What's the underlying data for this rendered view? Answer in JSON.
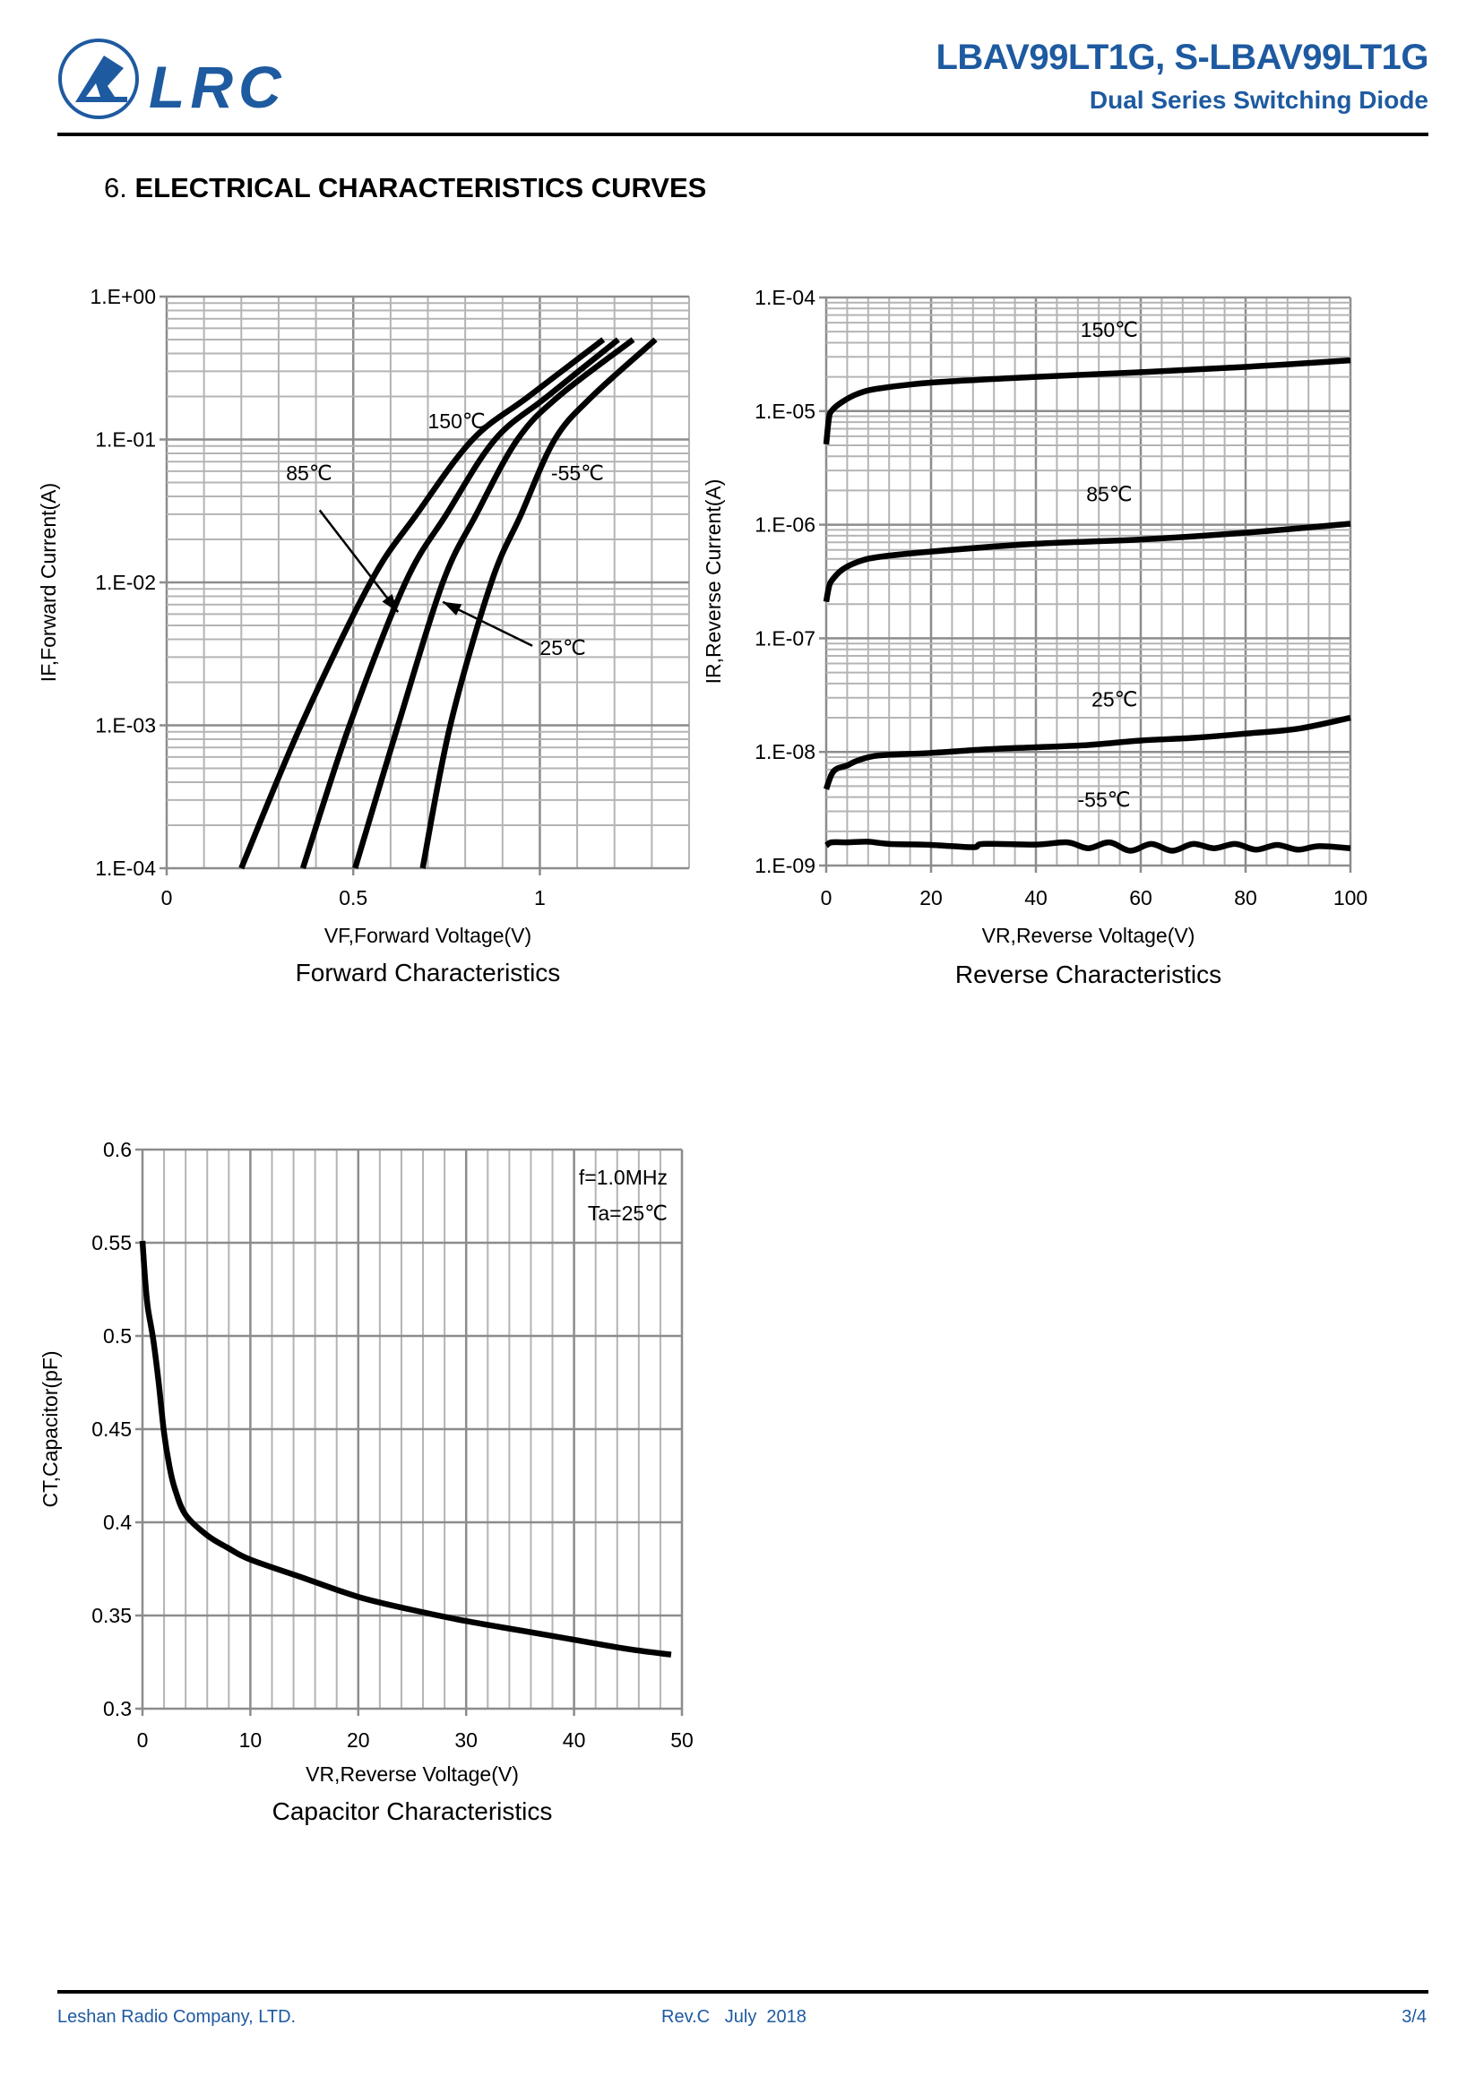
{
  "header": {
    "logo_text": "LRC",
    "title": "LBAV99LT1G, S-LBAV99LT1G",
    "subtitle": "Dual Series Switching Diode",
    "brand_color": "#1e5aa0"
  },
  "section": {
    "number": "6.",
    "title": "ELECTRICAL CHARACTERISTICS CURVES"
  },
  "footer": {
    "company": "Leshan Radio Company, LTD.",
    "revision": "Rev.C   July  2018",
    "page": "3/4"
  },
  "chart_data": [
    {
      "type": "line",
      "title": "Forward Characteristics",
      "xlabel": "VF,Forward Voltage(V)",
      "ylabel": "IF,Forward Current(A)",
      "xscale": "linear",
      "yscale": "log",
      "xlim": [
        0,
        1.4
      ],
      "ylim": [
        0.0001,
        1
      ],
      "xticks": [
        {
          "v": 0,
          "label": "0"
        },
        {
          "v": 0.5,
          "label": "0.5"
        },
        {
          "v": 1,
          "label": "1"
        }
      ],
      "yticks": [
        {
          "v": 1,
          "label": "1.E+00"
        },
        {
          "v": 0.1,
          "label": "1.E-01"
        },
        {
          "v": 0.01,
          "label": "1.E-02"
        },
        {
          "v": 0.001,
          "label": "1.E-03"
        },
        {
          "v": 0.0001,
          "label": "1.E-04"
        }
      ],
      "grid": true,
      "series": [
        {
          "name": "150℃",
          "x": [
            0.2,
            0.36,
            0.546,
            0.67,
            0.82,
            0.97,
            1.17
          ],
          "y": [
            0.0001,
            0.001,
            0.01,
            0.03,
            0.1,
            0.2,
            0.5
          ]
        },
        {
          "name": "85℃",
          "x": [
            0.365,
            0.49,
            0.64,
            0.75,
            0.88,
            1.02,
            1.21
          ],
          "y": [
            0.0001,
            0.001,
            0.01,
            0.03,
            0.1,
            0.2,
            0.5
          ]
        },
        {
          "name": "25℃",
          "x": [
            0.505,
            0.62,
            0.74,
            0.83,
            0.94,
            1.05,
            1.25
          ],
          "y": [
            0.0001,
            0.001,
            0.01,
            0.03,
            0.1,
            0.2,
            0.5
          ]
        },
        {
          "name": "-55℃",
          "x": [
            0.686,
            0.76,
            0.87,
            0.95,
            1.04,
            1.14,
            1.31
          ],
          "y": [
            0.0001,
            0.001,
            0.01,
            0.03,
            0.1,
            0.2,
            0.5
          ]
        }
      ],
      "annotations": [
        {
          "text": "150℃",
          "x": 0.7,
          "y": 0.12
        },
        {
          "text": "85℃",
          "x": 0.32,
          "y": 0.052
        },
        {
          "text": "-55℃",
          "x": 1.03,
          "y": 0.052
        },
        {
          "text": "25℃",
          "x": 1.0,
          "y": 0.0031
        }
      ],
      "arrows": [
        {
          "label": "85℃",
          "from": [
            0.41,
            0.032
          ],
          "to": [
            0.62,
            0.0062
          ]
        },
        {
          "label": "25℃",
          "from": [
            0.98,
            0.0036
          ],
          "to": [
            0.74,
            0.0073
          ]
        }
      ]
    },
    {
      "type": "line",
      "title": "Reverse Characteristics",
      "xlabel": "VR,Reverse Voltage(V)",
      "ylabel": "IR,Reverse Current(A)",
      "xscale": "linear",
      "yscale": "log",
      "xlim": [
        0,
        100
      ],
      "ylim": [
        1e-09,
        0.0001
      ],
      "xticks": [
        {
          "v": 0,
          "label": "0"
        },
        {
          "v": 20,
          "label": "20"
        },
        {
          "v": 40,
          "label": "40"
        },
        {
          "v": 60,
          "label": "60"
        },
        {
          "v": 80,
          "label": "80"
        },
        {
          "v": 100,
          "label": "100"
        }
      ],
      "yticks": [
        {
          "v": 0.0001,
          "label": "1.E-04"
        },
        {
          "v": 1e-05,
          "label": "1.E-05"
        },
        {
          "v": 1e-06,
          "label": "1.E-06"
        },
        {
          "v": 1e-07,
          "label": "1.E-07"
        },
        {
          "v": 1e-08,
          "label": "1.E-08"
        },
        {
          "v": 1e-09,
          "label": "1.E-09"
        }
      ],
      "grid": true,
      "series": [
        {
          "name": "150℃",
          "x": [
            0,
            0.5,
            1,
            3,
            6,
            10,
            20,
            40,
            60,
            80,
            100
          ],
          "y": [
            5.1e-06,
            8.5e-06,
            1e-05,
            1.2e-05,
            1.42e-05,
            1.58e-05,
            1.78e-05,
            2e-05,
            2.2e-05,
            2.45e-05,
            2.8e-05
          ]
        },
        {
          "name": "85℃",
          "x": [
            0,
            0.5,
            1,
            3,
            6,
            10,
            20,
            40,
            60,
            80,
            100
          ],
          "y": [
            2.1e-07,
            2.8e-07,
            3.2e-07,
            4e-07,
            4.7e-07,
            5.2e-07,
            5.8e-07,
            6.8e-07,
            7.4e-07,
            8.5e-07,
            1.02e-06
          ]
        },
        {
          "name": "25℃",
          "x": [
            0,
            1,
            2,
            4,
            6,
            10,
            20,
            30,
            40,
            50,
            60,
            70,
            80,
            90,
            100
          ],
          "y": [
            4.7e-09,
            6.3e-09,
            7.1e-09,
            7.6e-09,
            8.4e-09,
            9.3e-09,
            9.8e-09,
            1.05e-08,
            1.1e-08,
            1.15e-08,
            1.26e-08,
            1.33e-08,
            1.45e-08,
            1.6e-08,
            2e-08
          ]
        },
        {
          "name": "-55℃",
          "x": [
            0,
            1,
            4,
            8,
            12,
            20,
            28,
            30,
            40,
            46,
            50,
            54,
            58,
            62,
            66,
            70,
            74,
            78,
            82,
            86,
            90,
            94,
            100
          ],
          "y": [
            1.5e-09,
            1.6e-09,
            1.6e-09,
            1.62e-09,
            1.55e-09,
            1.52e-09,
            1.45e-09,
            1.55e-09,
            1.53e-09,
            1.6e-09,
            1.42e-09,
            1.6e-09,
            1.35e-09,
            1.55e-09,
            1.35e-09,
            1.55e-09,
            1.42e-09,
            1.55e-09,
            1.38e-09,
            1.52e-09,
            1.38e-09,
            1.48e-09,
            1.42e-09
          ]
        }
      ],
      "annotations": [
        {
          "text": "150℃",
          "x": 54,
          "y": 4.5e-05
        },
        {
          "text": "85℃",
          "x": 54,
          "y": 1.6e-06
        },
        {
          "text": "25℃",
          "x": 55,
          "y": 2.5e-08
        },
        {
          "text": "-55℃",
          "x": 53,
          "y": 3.3e-09
        }
      ]
    },
    {
      "type": "line",
      "title": "Capacitor Characteristics",
      "xlabel": "VR,Reverse Voltage(V)",
      "ylabel": "CT,Capacitor(pF)",
      "xscale": "linear",
      "yscale": "linear",
      "xlim": [
        0,
        50
      ],
      "ylim": [
        0.3,
        0.6
      ],
      "xticks": [
        {
          "v": 0,
          "label": "0"
        },
        {
          "v": 10,
          "label": "10"
        },
        {
          "v": 20,
          "label": "20"
        },
        {
          "v": 30,
          "label": "30"
        },
        {
          "v": 40,
          "label": "40"
        },
        {
          "v": 50,
          "label": "50"
        }
      ],
      "yticks": [
        {
          "v": 0.6,
          "label": "0.6"
        },
        {
          "v": 0.55,
          "label": "0.55"
        },
        {
          "v": 0.5,
          "label": "0.5"
        },
        {
          "v": 0.45,
          "label": "0.45"
        },
        {
          "v": 0.4,
          "label": "0.4"
        },
        {
          "v": 0.35,
          "label": "0.35"
        },
        {
          "v": 0.3,
          "label": "0.3"
        }
      ],
      "grid": true,
      "series": [
        {
          "name": "Ta=25℃",
          "x": [
            0,
            0.25,
            0.5,
            1,
            1.5,
            2,
            2.5,
            3,
            4,
            6,
            8,
            10,
            15,
            20,
            25,
            30,
            35,
            40,
            45,
            49
          ],
          "y": [
            0.551,
            0.53,
            0.515,
            0.498,
            0.475,
            0.448,
            0.43,
            0.418,
            0.404,
            0.393,
            0.386,
            0.38,
            0.37,
            0.36,
            0.353,
            0.347,
            0.342,
            0.337,
            0.332,
            0.329
          ]
        }
      ],
      "annotations": [
        {
          "text": "f=1.0MHz"
        },
        {
          "text": "Ta=25℃"
        }
      ]
    }
  ]
}
